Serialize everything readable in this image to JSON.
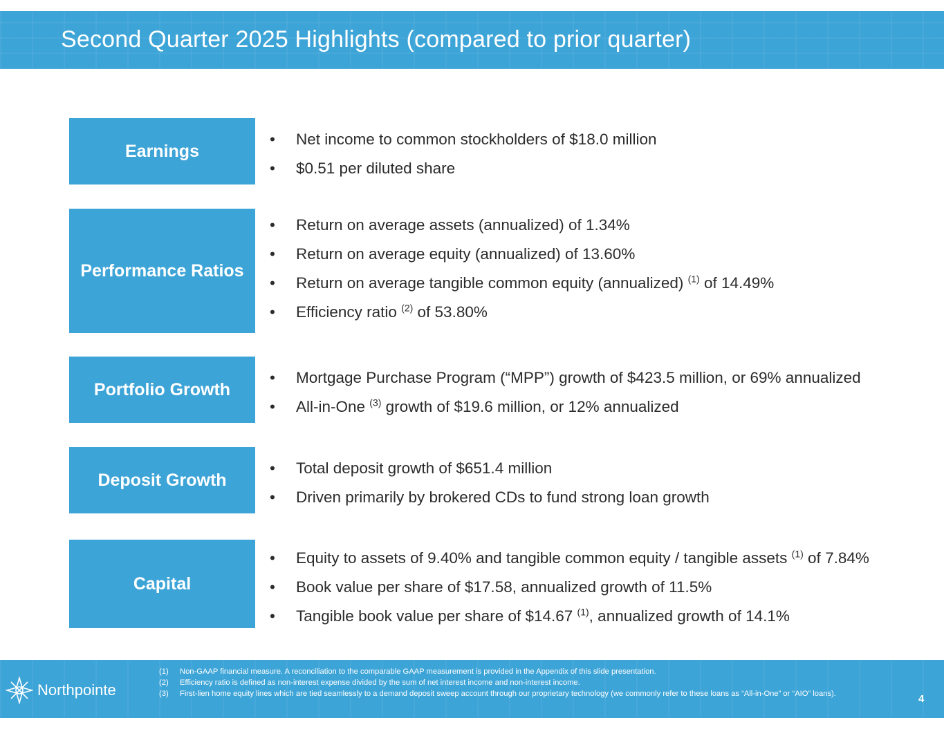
{
  "header": {
    "title": "Second Quarter 2025 Highlights (compared to prior quarter)"
  },
  "bullet_char": "•",
  "sections": [
    {
      "label": "Earnings",
      "bullets": [
        {
          "text": "Net income to common stockholders of $18.0 million"
        },
        {
          "text": "$0.51 per diluted share"
        }
      ]
    },
    {
      "label": "Performance Ratios",
      "bullets": [
        {
          "text": "Return on average assets (annualized) of 1.34%"
        },
        {
          "text": "Return on average equity (annualized) of 13.60%"
        },
        {
          "pre": "Return on average tangible common equity (annualized) ",
          "sup": "(1)",
          "post": " of 14.49%"
        },
        {
          "pre": "Efficiency ratio ",
          "sup": "(2)",
          "post": " of 53.80%"
        }
      ]
    },
    {
      "label": "Portfolio Growth",
      "bullets": [
        {
          "text": "Mortgage Purchase Program (“MPP”) growth of $423.5 million, or 69% annualized"
        },
        {
          "pre": "All-in-One ",
          "sup": "(3)",
          "post": " growth of $19.6 million, or 12% annualized"
        }
      ]
    },
    {
      "label": "Deposit Growth",
      "bullets": [
        {
          "text": "Total deposit growth of $651.4 million"
        },
        {
          "text": "Driven primarily by brokered CDs to fund strong loan growth"
        }
      ]
    },
    {
      "label": "Capital",
      "bullets": [
        {
          "pre": "Equity to assets of 9.40% and tangible common equity / tangible assets ",
          "sup": "(1)",
          "post": " of 7.84%"
        },
        {
          "text": "Book value per share of $17.58, annualized growth of 11.5%"
        },
        {
          "pre": "Tangible book value per share of $14.67 ",
          "sup": "(1)",
          "post": ", annualized growth of 14.1%"
        }
      ]
    }
  ],
  "footer": {
    "logo_text": "Northpointe",
    "logo_icon": "compass-star-icon",
    "footnotes": [
      {
        "num": "(1)",
        "text": "Non-GAAP financial measure. A reconciliation to the comparable GAAP measurement is provided in the Appendix of this slide presentation."
      },
      {
        "num": "(2)",
        "text": "Efficiency ratio is defined as non-interest expense divided by the sum of net interest income and non-interest income."
      },
      {
        "num": "(3)",
        "text": "First-lien home equity lines which are tied seamlessly to a demand deposit sweep account through our proprietary technology (we commonly refer to these loans as “All-in-One” or “AIO” loans)."
      }
    ],
    "page_number": "4"
  },
  "colors": {
    "accent": "#3da4d7",
    "text": "#2b2b2b",
    "white": "#ffffff"
  }
}
